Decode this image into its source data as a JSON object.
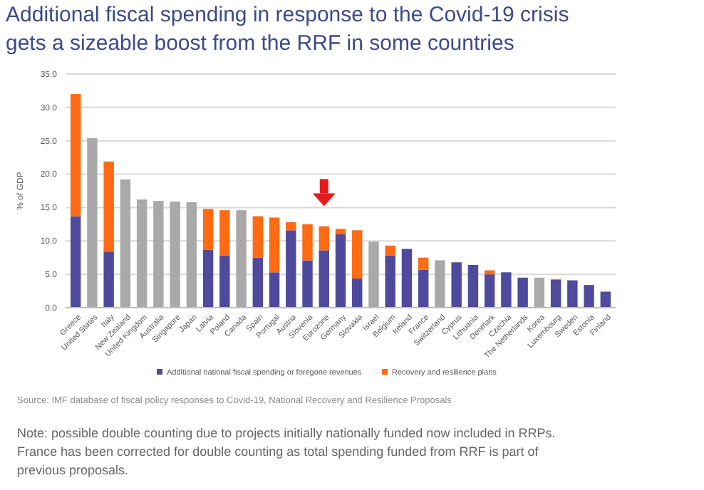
{
  "chart_data": {
    "type": "bar",
    "title": "Additional fiscal spending in response to the Covid-19 crisis gets a sizeable boost from the RRF in some countries",
    "ylabel": "% of GDP",
    "categories": [
      "Greece",
      "United States",
      "Italy",
      "New Zealand",
      "United Kingdom",
      "Australia",
      "Singapore",
      "Japan",
      "Latvia",
      "Poland",
      "Canada",
      "Spain",
      "Portugal",
      "Austria",
      "Slovenia",
      "Eurozone",
      "Germany",
      "Slovakia",
      "Israel",
      "Belgium",
      "Ireland",
      "France",
      "Switzerland",
      "Cyprus",
      "Lithuania",
      "Denmark",
      "Czechia",
      "The Netherlands",
      "Korea",
      "Luxembourg",
      "Sweden",
      "Estonia",
      "Finland"
    ],
    "stacked": true,
    "series": [
      {
        "name": "Additional national fiscal spending or foregone revenues",
        "color": "#4f4a9c",
        "values": [
          13.7,
          null,
          8.4,
          null,
          null,
          null,
          null,
          null,
          8.7,
          7.8,
          null,
          7.5,
          5.3,
          11.6,
          7.1,
          8.6,
          11.0,
          4.4,
          null,
          7.8,
          8.8,
          5.7,
          null,
          6.8,
          6.4,
          5.0,
          5.3,
          4.5,
          null,
          4.2,
          4.1,
          3.4,
          2.4
        ]
      },
      {
        "name": "Recovery and resilience plans",
        "color": "#ff6a13",
        "values": [
          18.3,
          null,
          13.5,
          null,
          null,
          null,
          null,
          null,
          6.1,
          6.8,
          null,
          6.2,
          8.2,
          1.2,
          5.4,
          3.6,
          0.8,
          7.2,
          null,
          1.5,
          null,
          1.8,
          null,
          null,
          null,
          0.6,
          null,
          null,
          null,
          0.1,
          null,
          null,
          null
        ]
      },
      {
        "color": "#a9a9a9",
        "values": [
          null,
          25.4,
          null,
          19.2,
          16.2,
          16.0,
          15.9,
          15.8,
          null,
          null,
          14.6,
          null,
          null,
          null,
          null,
          null,
          null,
          null,
          9.9,
          null,
          null,
          null,
          7.1,
          null,
          null,
          null,
          null,
          null,
          4.5,
          null,
          null,
          null,
          null
        ]
      }
    ],
    "ylim": [
      0,
      35
    ],
    "yticks": [
      {
        "value": 0,
        "label": "0.0"
      },
      {
        "value": 5,
        "label": "5.0"
      },
      {
        "value": 10,
        "label": "10.0"
      },
      {
        "value": 15,
        "label": "15.0"
      },
      {
        "value": 20,
        "label": "20.0"
      },
      {
        "value": 25,
        "label": "25.0"
      },
      {
        "value": 30,
        "label": "30.0"
      },
      {
        "value": 35,
        "label": "35.0"
      }
    ],
    "grid": "y",
    "legend": "bottom",
    "annotations": [
      "Source: IMF database of fiscal policy responses to Covid-19, National Recovery and Resilience Proposals",
      "Note: possible double counting due to projects initially nationally funded now included in RRPs. France has been corrected for double counting as total spending funded from RRF is part of previous proposals."
    ]
  }
}
